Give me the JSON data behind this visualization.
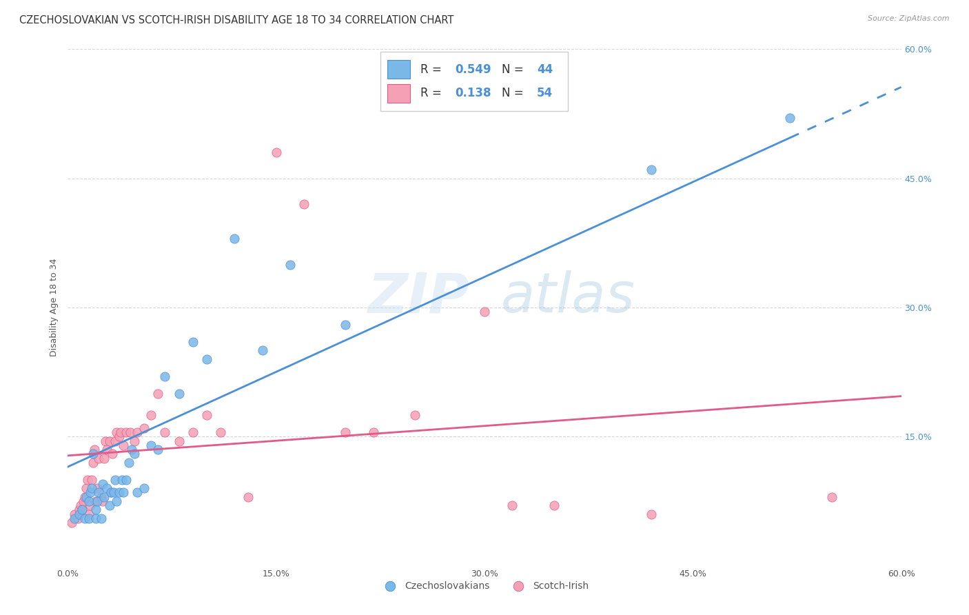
{
  "title": "CZECHOSLOVAKIAN VS SCOTCH-IRISH DISABILITY AGE 18 TO 34 CORRELATION CHART",
  "source": "Source: ZipAtlas.com",
  "ylabel": "Disability Age 18 to 34",
  "xlim": [
    0.0,
    0.6
  ],
  "ylim": [
    0.0,
    0.6
  ],
  "xticks": [
    0.0,
    0.15,
    0.3,
    0.45,
    0.6
  ],
  "yticks": [
    0.15,
    0.3,
    0.45,
    0.6
  ],
  "xticklabels": [
    "0.0%",
    "15.0%",
    "30.0%",
    "45.0%",
    "60.0%"
  ],
  "right_yticklabels": [
    "15.0%",
    "30.0%",
    "45.0%",
    "60.0%"
  ],
  "right_yticks": [
    0.15,
    0.3,
    0.45,
    0.6
  ],
  "legend_labels": [
    "Czechoslovakians",
    "Scotch-Irish"
  ],
  "legend_r": [
    0.549,
    0.138
  ],
  "legend_n": [
    44,
    54
  ],
  "color_blue": "#7ab8e8",
  "color_pink": "#f4a0b5",
  "line_color_blue": "#4a90d9",
  "line_color_pink": "#e05a8a",
  "background_color": "#ffffff",
  "grid_color": "#cccccc",
  "blue_scatter_x": [
    0.005,
    0.008,
    0.01,
    0.012,
    0.013,
    0.015,
    0.015,
    0.016,
    0.017,
    0.018,
    0.02,
    0.02,
    0.021,
    0.022,
    0.024,
    0.025,
    0.026,
    0.028,
    0.03,
    0.031,
    0.033,
    0.034,
    0.035,
    0.037,
    0.039,
    0.04,
    0.042,
    0.044,
    0.046,
    0.048,
    0.05,
    0.055,
    0.06,
    0.065,
    0.07,
    0.08,
    0.09,
    0.1,
    0.12,
    0.14,
    0.16,
    0.2,
    0.42,
    0.52
  ],
  "blue_scatter_y": [
    0.055,
    0.06,
    0.065,
    0.055,
    0.08,
    0.055,
    0.075,
    0.085,
    0.09,
    0.13,
    0.055,
    0.065,
    0.075,
    0.085,
    0.055,
    0.095,
    0.08,
    0.09,
    0.07,
    0.085,
    0.085,
    0.1,
    0.075,
    0.085,
    0.1,
    0.085,
    0.1,
    0.12,
    0.135,
    0.13,
    0.085,
    0.09,
    0.14,
    0.135,
    0.22,
    0.2,
    0.26,
    0.24,
    0.38,
    0.25,
    0.35,
    0.28,
    0.46,
    0.52
  ],
  "pink_scatter_x": [
    0.003,
    0.005,
    0.007,
    0.008,
    0.009,
    0.01,
    0.011,
    0.012,
    0.013,
    0.014,
    0.015,
    0.016,
    0.017,
    0.018,
    0.019,
    0.02,
    0.021,
    0.022,
    0.024,
    0.025,
    0.026,
    0.027,
    0.028,
    0.03,
    0.031,
    0.032,
    0.034,
    0.035,
    0.037,
    0.038,
    0.04,
    0.042,
    0.045,
    0.048,
    0.05,
    0.055,
    0.06,
    0.065,
    0.07,
    0.08,
    0.09,
    0.1,
    0.11,
    0.13,
    0.15,
    0.17,
    0.2,
    0.22,
    0.25,
    0.3,
    0.32,
    0.35,
    0.42,
    0.55
  ],
  "pink_scatter_y": [
    0.05,
    0.06,
    0.055,
    0.065,
    0.07,
    0.065,
    0.075,
    0.08,
    0.09,
    0.1,
    0.06,
    0.07,
    0.1,
    0.12,
    0.135,
    0.075,
    0.09,
    0.125,
    0.08,
    0.075,
    0.125,
    0.145,
    0.135,
    0.145,
    0.085,
    0.13,
    0.145,
    0.155,
    0.15,
    0.155,
    0.14,
    0.155,
    0.155,
    0.145,
    0.155,
    0.16,
    0.175,
    0.2,
    0.155,
    0.145,
    0.155,
    0.175,
    0.155,
    0.08,
    0.48,
    0.42,
    0.155,
    0.155,
    0.175,
    0.295,
    0.07,
    0.07,
    0.06,
    0.08
  ],
  "blue_line_intercept": 0.115,
  "blue_line_slope": 0.735,
  "blue_line_solid_end": 0.52,
  "pink_line_intercept": 0.128,
  "pink_line_slope": 0.115,
  "watermark_zip": "ZIP",
  "watermark_atlas": "atlas",
  "title_fontsize": 10.5,
  "axis_label_fontsize": 9,
  "tick_fontsize": 9,
  "legend_fontsize": 12
}
